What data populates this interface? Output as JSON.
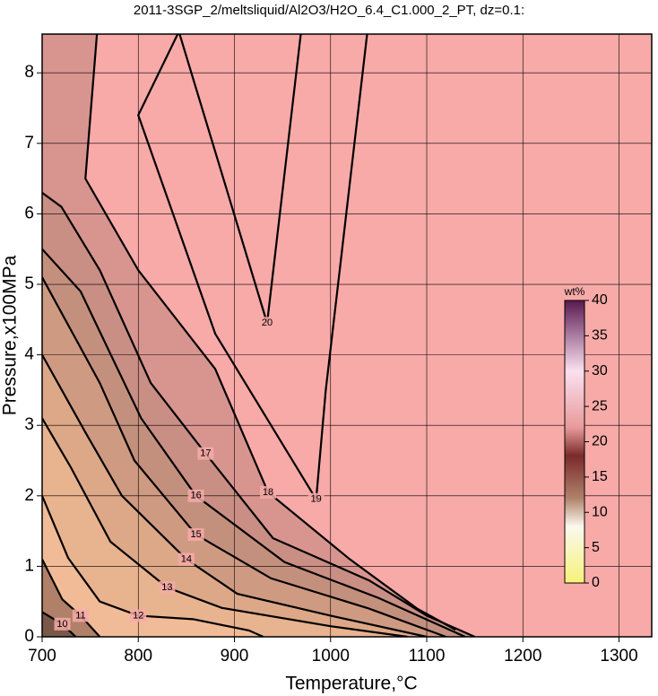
{
  "chart_data": {
    "type": "contour",
    "title": "2011-3SGP_2/meltsliquid/Al2O3/H2O_6.4_C1.000_2_PT, dz=0.1:",
    "x_label": "Temperature,°C",
    "y_label": "Pressure,x100MPa",
    "xlim": [
      700,
      1334
    ],
    "ylim": [
      0,
      8.55
    ],
    "xticks": [
      700,
      800,
      900,
      1000,
      1100,
      1200,
      1300
    ],
    "yticks": [
      0,
      1,
      2,
      3,
      4,
      5,
      6,
      7,
      8
    ],
    "grid": true,
    "background": "#f7aaa8",
    "line_color": "#000000",
    "colorbar": {
      "label": "wt%",
      "lim": [
        0,
        40
      ],
      "ticks": [
        0,
        5,
        10,
        15,
        20,
        25,
        30,
        35,
        40
      ]
    },
    "contours": [
      {
        "level": 20,
        "fill": null,
        "x": [
          843,
          934,
          969
        ],
        "y": [
          8.55,
          4.45,
          8.55
        ]
      },
      {
        "level": 19,
        "fill": null,
        "x": [
          841,
          800,
          880,
          985,
          995,
          1038
        ],
        "y": [
          8.55,
          7.4,
          4.3,
          1.95,
          3.5,
          8.55
        ]
      },
      {
        "level": 18,
        "fill": "#d89590",
        "x": [
          757,
          745,
          800,
          880,
          935,
          1020,
          1090,
          1130
        ],
        "y": [
          8.55,
          6.5,
          5.2,
          3.8,
          2.05,
          1.1,
          0.4,
          0.1
        ]
      },
      {
        "level": 17,
        "fill": "#c98e84",
        "x": [
          700,
          720,
          760,
          813,
          870,
          940,
          1040,
          1100,
          1150
        ],
        "y": [
          6.3,
          6.1,
          5.2,
          3.6,
          2.6,
          1.4,
          0.8,
          0.3,
          0
        ]
      },
      {
        "level": 16,
        "fill": "#c4907e",
        "x": [
          700,
          740,
          803,
          860,
          952,
          1050,
          1140
        ],
        "y": [
          5.5,
          4.9,
          3.1,
          2.0,
          1.06,
          0.55,
          0
        ]
      },
      {
        "level": 15,
        "fill": "#cf9a82",
        "x": [
          700,
          760,
          796,
          860,
          938,
          1040,
          1120
        ],
        "y": [
          5.1,
          3.6,
          2.5,
          1.45,
          0.83,
          0.4,
          0
        ]
      },
      {
        "level": 14,
        "fill": "#dca888",
        "x": [
          700,
          745,
          783,
          850,
          903,
          1000,
          1100
        ],
        "y": [
          4.0,
          2.9,
          2.0,
          1.1,
          0.61,
          0.3,
          0
        ]
      },
      {
        "level": 13,
        "fill": "#e8b38f",
        "x": [
          700,
          730,
          771,
          830,
          887,
          1000,
          1080
        ],
        "y": [
          3.1,
          2.4,
          1.35,
          0.7,
          0.41,
          0.15,
          0
        ]
      },
      {
        "level": 12,
        "fill": "#f1bb97",
        "x": [
          700,
          727,
          760,
          800,
          857,
          915,
          930
        ],
        "y": [
          2.0,
          1.12,
          0.5,
          0.3,
          0.25,
          0.09,
          0
        ]
      },
      {
        "level": 11,
        "fill": "#b08068",
        "x": [
          700,
          721,
          740,
          760
        ],
        "y": [
          1.1,
          0.53,
          0.3,
          0
        ]
      },
      {
        "level": 10,
        "fill": "#7a5848",
        "x": [
          700,
          721,
          735
        ],
        "y": [
          0.35,
          0.18,
          0
        ]
      }
    ]
  }
}
